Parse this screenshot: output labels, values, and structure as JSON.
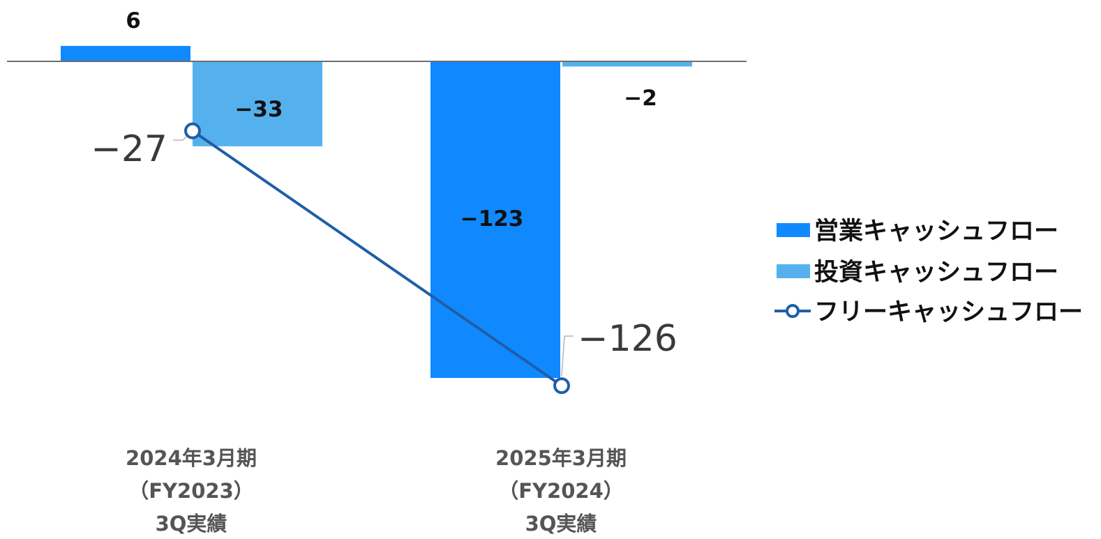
{
  "chart_data": {
    "type": "bar",
    "categories": [
      [
        "2024年3月期",
        "（FY2023）",
        "3Q実績"
      ],
      [
        "2025年3月期",
        "（FY2024）",
        "3Q実績"
      ]
    ],
    "series": [
      {
        "name": "営業キャッシュフロー",
        "type": "bar",
        "values": [
          6,
          -123
        ],
        "labels": [
          "6",
          "−123"
        ]
      },
      {
        "name": "投資キャッシュフロー",
        "type": "bar",
        "values": [
          -33,
          -2
        ],
        "labels": [
          "−33",
          "−2"
        ]
      },
      {
        "name": "フリーキャッシュフロー",
        "type": "line",
        "values": [
          -27,
          -126
        ],
        "labels": [
          "−27",
          "−126"
        ]
      }
    ],
    "colors": {
      "operating": "#1089ff",
      "investing": "#55b1ee",
      "free": "#1f5ea8",
      "axis": "#6e6e6e",
      "category_text": "#555555"
    },
    "legend_position": "right",
    "grid": false
  }
}
